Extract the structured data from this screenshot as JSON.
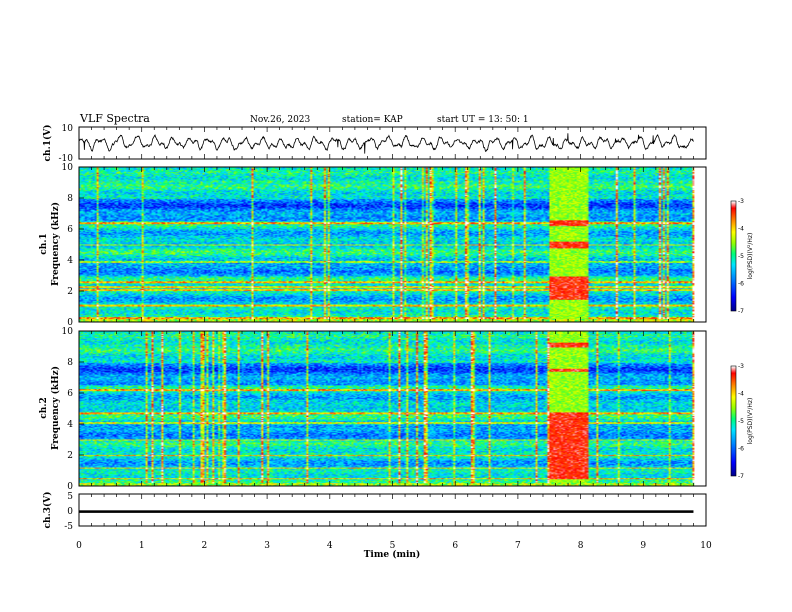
{
  "header": {
    "title": "VLF Spectra",
    "date": "Nov.26, 2023",
    "station": "station= KAP",
    "start": "start  UT  =   13: 50: 1"
  },
  "chart_data": [
    {
      "type": "line",
      "panel": "ch1-waveform",
      "xlabel": "",
      "ylabel": "ch.1(V)",
      "xlim": [
        0,
        10
      ],
      "ylim": [
        -10,
        10
      ],
      "yticks": [
        "10",
        "-10"
      ],
      "x_extent_min": [
        0,
        9.8
      ],
      "y_typical_range": [
        -5,
        5
      ]
    },
    {
      "type": "heatmap",
      "panel": "ch1-spectrogram",
      "ylabel": "ch.1\nFrequency (kHz)",
      "ylabel_line1": "ch.1",
      "ylabel_line2": "Frequency (kHz)",
      "xlim": [
        0,
        10
      ],
      "ylim": [
        0,
        10
      ],
      "yticks": [
        "0",
        "2",
        "4",
        "6",
        "8",
        "10"
      ],
      "data_extent_min": [
        0,
        9.8
      ],
      "color_scale": {
        "label": "log(PSD)(V²/Hz)",
        "min": -7,
        "max": -3,
        "ticks": [
          "-3",
          "-4",
          "-5",
          "-6",
          "-7"
        ],
        "colors": [
          "#000090",
          "#0000ff",
          "#00a0ff",
          "#00ffff",
          "#00ff60",
          "#a0ff00",
          "#ffff00",
          "#ff8000",
          "#ff0000",
          "#ffffff"
        ]
      },
      "strong_lines_khz": [
        0.3,
        1.1,
        2.1,
        2.3,
        2.6,
        3.9,
        5.0,
        6.4
      ],
      "interference_block": {
        "t_range": [
          7.5,
          8.1
        ],
        "bands_khz": [
          [
            1.5,
            3.0
          ],
          [
            4.8,
            5.2
          ],
          [
            6.2,
            6.6
          ]
        ]
      }
    },
    {
      "type": "heatmap",
      "panel": "ch2-spectrogram",
      "ylabel": "ch.2\nFrequency (kHz)",
      "ylabel_line1": "ch.2",
      "ylabel_line2": "Frequency (kHz)",
      "xlim": [
        0,
        10
      ],
      "ylim": [
        0,
        10
      ],
      "yticks": [
        "0",
        "2",
        "4",
        "6",
        "8",
        "10"
      ],
      "data_extent_min": [
        0,
        9.8
      ],
      "color_scale": {
        "label": "log(PSD)(V²/Hz)",
        "min": -7,
        "max": -3,
        "ticks": [
          "-3",
          "-4",
          "-5",
          "-6",
          "-7"
        ]
      },
      "strong_lines_khz": [
        0.5,
        1.2,
        2.0,
        3.0,
        4.1,
        4.7,
        6.2
      ],
      "interference_block": {
        "t_range": [
          7.5,
          8.1
        ],
        "bands_khz": [
          [
            0.5,
            4.8
          ],
          [
            7.4,
            7.6
          ],
          [
            9.0,
            9.3
          ]
        ]
      }
    },
    {
      "type": "line",
      "panel": "ch3-waveform",
      "xlabel": "Time  (min)",
      "ylabel": "ch.3(V)",
      "xlim": [
        0,
        10
      ],
      "ylim": [
        -5,
        5
      ],
      "yticks": [
        "5",
        "0",
        "-5"
      ],
      "xticks": [
        "0",
        "1",
        "2",
        "3",
        "4",
        "5",
        "6",
        "7",
        "8",
        "9",
        "10"
      ],
      "y_value_band": [
        -0.9,
        -0.1
      ],
      "x_extent_min": [
        0,
        9.8
      ]
    }
  ]
}
